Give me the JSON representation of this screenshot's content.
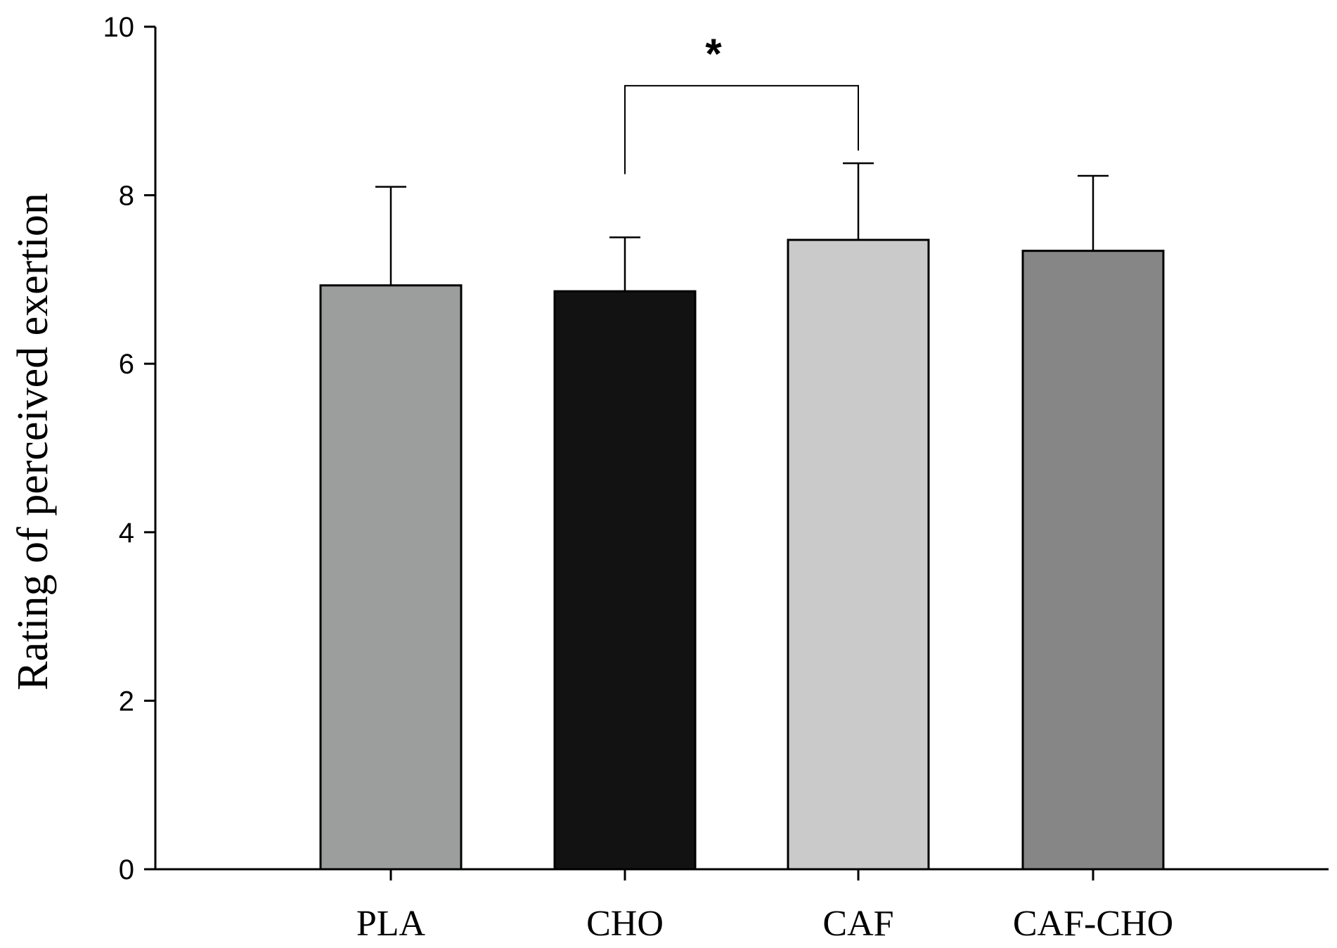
{
  "chart_data": {
    "type": "bar",
    "title": "",
    "xlabel": "",
    "ylabel": "Rating of perceived exertion",
    "ylim": [
      0,
      10
    ],
    "yticks": [
      0,
      2,
      4,
      6,
      8,
      10
    ],
    "grid": false,
    "legend": "none",
    "categories": [
      "PLA",
      "CHO",
      "CAF",
      "CAF-CHO"
    ],
    "values": [
      6.93,
      6.86,
      7.47,
      7.34
    ],
    "error_upper": [
      8.1,
      7.5,
      8.38,
      8.23
    ],
    "bar_colors": [
      "#9c9e9d",
      "#121212",
      "#cacaca",
      "#858685"
    ],
    "significance": [
      {
        "from": "CHO",
        "to": "CAF",
        "label": "*",
        "level": 9.3
      }
    ]
  }
}
